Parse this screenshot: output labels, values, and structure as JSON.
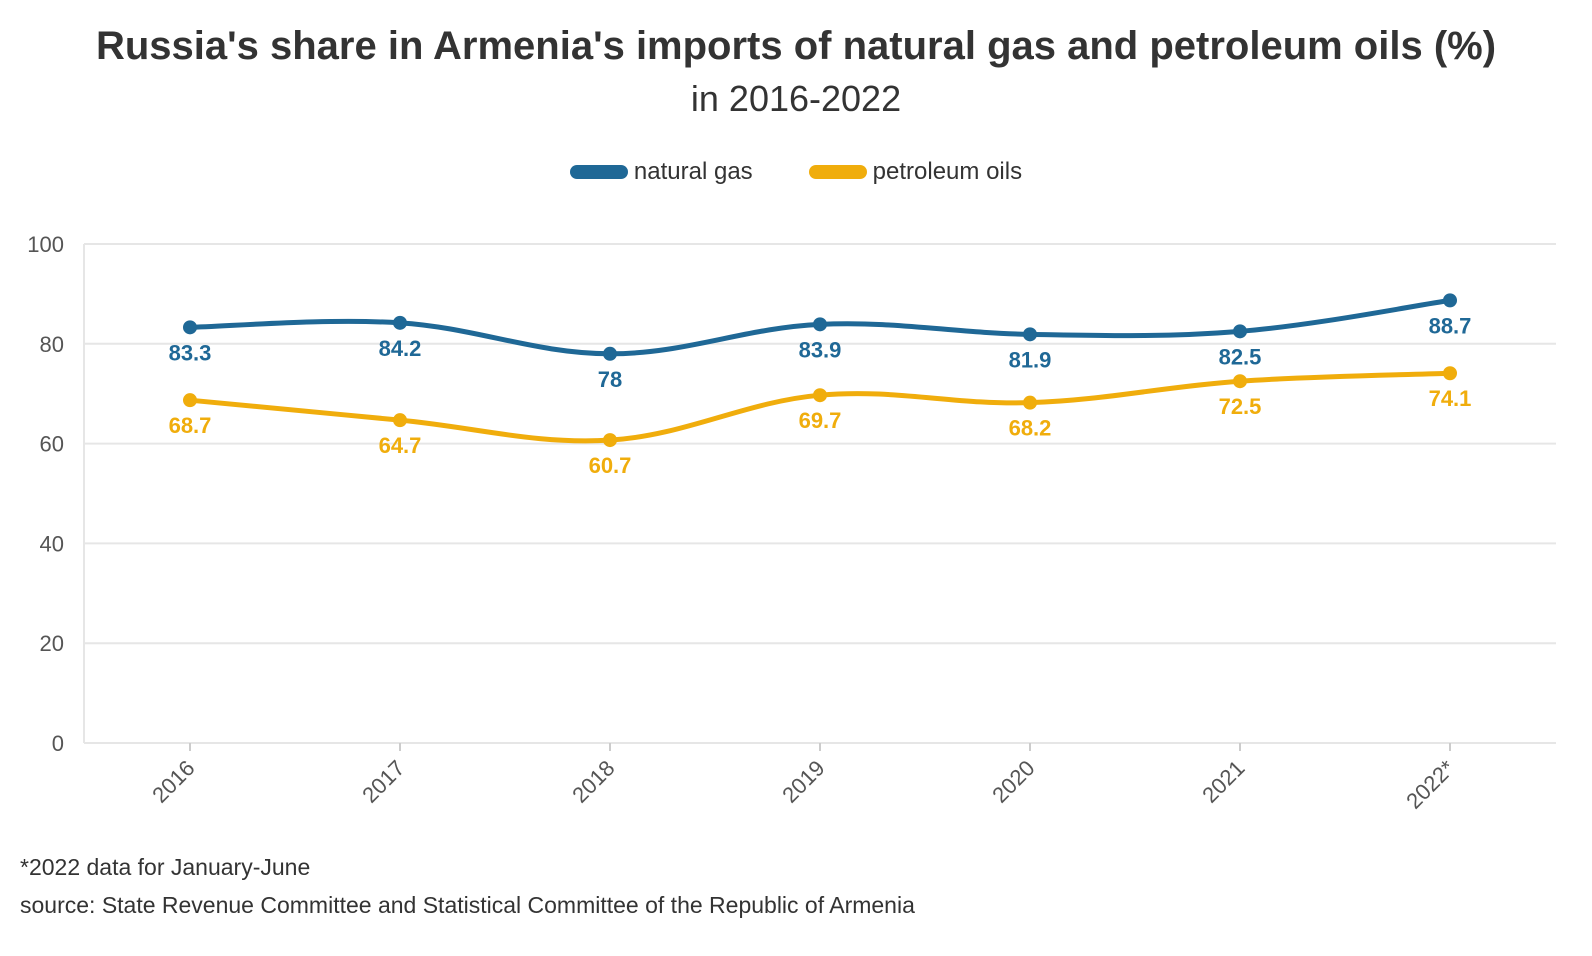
{
  "chart_data": {
    "type": "line",
    "title": "Russia's share in Armenia's imports of natural gas and petroleum oils (%)",
    "subtitle": "in 2016-2022",
    "categories": [
      "2016",
      "2017",
      "2018",
      "2019",
      "2020",
      "2021",
      "2022*"
    ],
    "series": [
      {
        "name": "natural gas",
        "color": "#1f6896",
        "values": [
          83.3,
          84.2,
          78,
          83.9,
          81.9,
          82.5,
          88.7
        ]
      },
      {
        "name": "petroleum oils",
        "color": "#f0ad0c",
        "values": [
          68.7,
          64.7,
          60.7,
          69.7,
          68.2,
          72.5,
          74.1
        ]
      }
    ],
    "y_ticks": [
      0,
      20,
      40,
      60,
      80,
      100
    ],
    "ylim": [
      0,
      100
    ],
    "grid": true,
    "legend_position": "top-center",
    "data_labels": "below points"
  },
  "footnote": "*2022 data for January-June",
  "source": "source: State Revenue Committee and Statistical Committee of the Republic of Armenia"
}
